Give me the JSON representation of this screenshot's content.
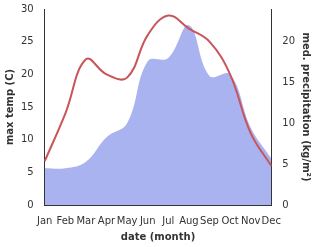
{
  "chart_data": {
    "type": "line",
    "xlabel": "date (month)",
    "ylabel": "max temp (C)",
    "y2label": "med. precipitation (kg/m²)",
    "categories": [
      "Jan",
      "Feb",
      "Mar",
      "Apr",
      "May",
      "Jun",
      "Jul",
      "Aug",
      "Sep",
      "Oct",
      "Nov",
      "Dec"
    ],
    "series": [
      {
        "type": "area",
        "axis": "y2",
        "color": "#a9b3f0",
        "marker": "none",
        "values": [
          4.5,
          4.5,
          5.3,
          8.3,
          10,
          17.6,
          18,
          22,
          15.8,
          16,
          9.5,
          5.7
        ]
      },
      {
        "type": "line",
        "axis": "y",
        "color": "#c9545a",
        "marker": "none",
        "line_style": "solid",
        "values": [
          6.7,
          14,
          22.3,
          20,
          19.5,
          26,
          29,
          27,
          25,
          20,
          11,
          6
        ]
      }
    ],
    "ylim": [
      0,
      30
    ],
    "yticks": [
      0,
      5,
      10,
      15,
      20,
      25,
      30
    ],
    "y2lim": [
      0,
      24
    ],
    "y2ticks": [
      0,
      5,
      10,
      15,
      20
    ],
    "grid": false
  }
}
